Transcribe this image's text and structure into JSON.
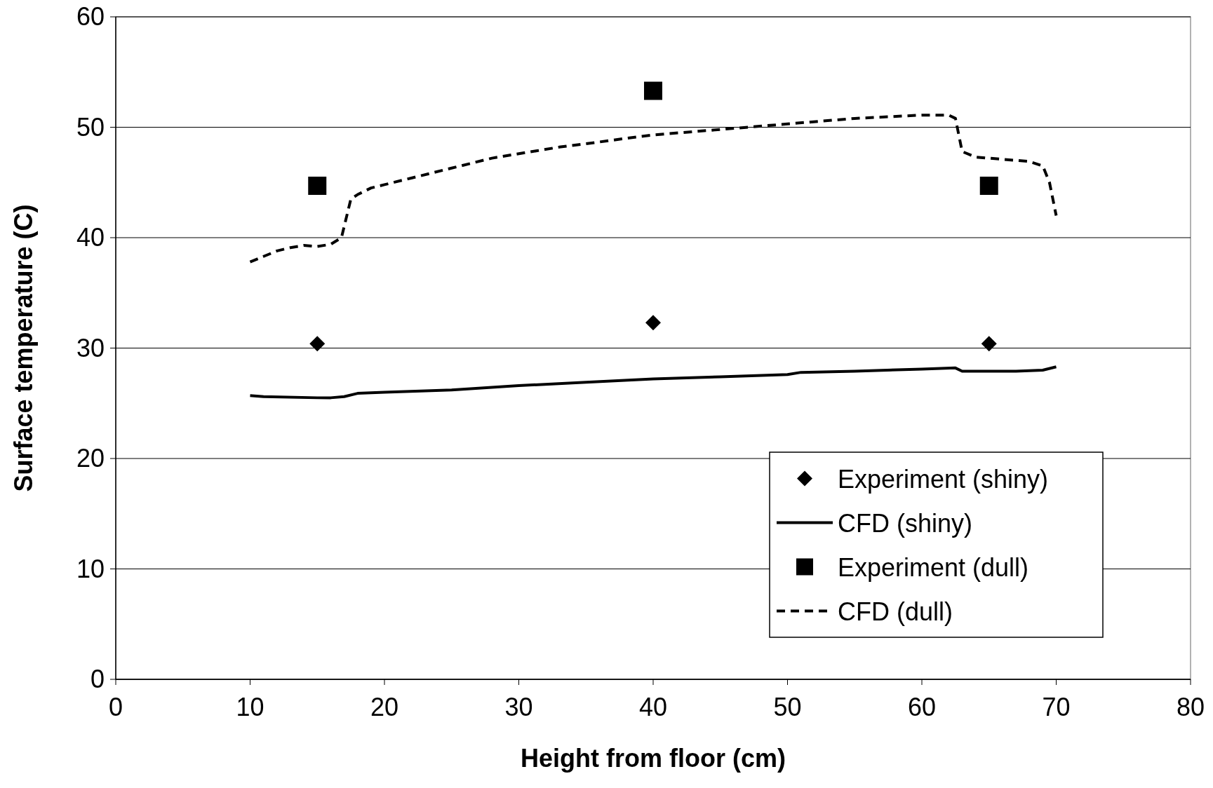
{
  "chart_data": {
    "type": "line",
    "xlabel": "Height from floor (cm)",
    "ylabel": "Surface temperature (C)",
    "xlim": [
      0,
      80
    ],
    "xticks": [
      0,
      10,
      20,
      30,
      40,
      50,
      60,
      70,
      80
    ],
    "ylim": [
      0,
      60
    ],
    "yticks": [
      0,
      10,
      20,
      30,
      40,
      50,
      60
    ],
    "grid": "y",
    "legend": "bottom right",
    "series": [
      {
        "name": "Experiment (shiny)",
        "type": "scatter",
        "marker": "diamond",
        "color": "#000000",
        "x": [
          15,
          40,
          65
        ],
        "values": [
          30.4,
          32.3,
          30.4
        ]
      },
      {
        "name": "CFD (shiny)",
        "line_style": "solid",
        "color": "#000000",
        "x": [
          10,
          11,
          15,
          16,
          17,
          18,
          20,
          25,
          30,
          35,
          40,
          45,
          50,
          51,
          55,
          60,
          62.5,
          63,
          67,
          69,
          70
        ],
        "values": [
          25.7,
          25.6,
          25.5,
          25.5,
          25.6,
          25.9,
          26.0,
          26.2,
          26.6,
          26.9,
          27.2,
          27.4,
          27.6,
          27.8,
          27.9,
          28.1,
          28.2,
          27.9,
          27.9,
          28.0,
          28.3
        ]
      },
      {
        "name": "Experiment (dull)",
        "type": "scatter",
        "marker": "square",
        "color": "#000000",
        "x": [
          15,
          40,
          65
        ],
        "values": [
          44.7,
          53.3,
          44.7
        ]
      },
      {
        "name": "CFD (dull)",
        "line_style": "dashed",
        "color": "#000000",
        "x": [
          10,
          11,
          12,
          13,
          14,
          15,
          16,
          16.8,
          17.5,
          18,
          19,
          20,
          22,
          25,
          28,
          30,
          33,
          35,
          38,
          40,
          45,
          50,
          55,
          60,
          62,
          62.5,
          63,
          64,
          66,
          68,
          69,
          69.5,
          70
        ],
        "values": [
          37.8,
          38.3,
          38.8,
          39.1,
          39.3,
          39.2,
          39.4,
          40.0,
          43.5,
          43.9,
          44.5,
          44.8,
          45.4,
          46.3,
          47.2,
          47.6,
          48.2,
          48.5,
          49.0,
          49.3,
          49.8,
          50.3,
          50.8,
          51.1,
          51.1,
          50.8,
          47.8,
          47.3,
          47.1,
          46.9,
          46.5,
          45.0,
          42.0
        ]
      }
    ]
  }
}
